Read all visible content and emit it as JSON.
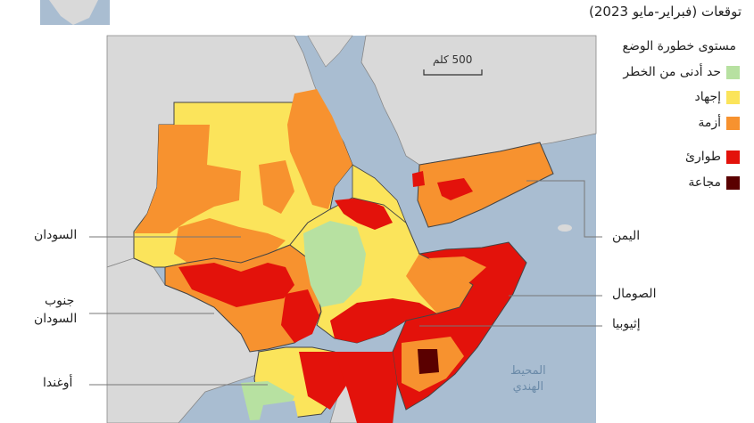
{
  "subtitle": "توقعات (فبراير-مايو 2023)",
  "legend": {
    "title": "مستوى خطورة الوضع",
    "items": [
      {
        "label": "حد أدنى من الخطر",
        "color": "#b7e1a1"
      },
      {
        "label": "إجهاد",
        "color": "#fbe45b"
      },
      {
        "label": "أزمة",
        "color": "#f7922f"
      },
      {
        "label": "طوارئ",
        "color": "#e3120b"
      },
      {
        "label": "مجاعة",
        "color": "#5a0000"
      }
    ]
  },
  "scale": {
    "label": "500 كلم"
  },
  "countries": {
    "sudan": "السودان",
    "south_sudan_1": "جنوب",
    "south_sudan_2": "السودان",
    "uganda": "أوغندا",
    "yemen": "اليمن",
    "somalia": "الصومال",
    "ethiopia": "إثيوبيا"
  },
  "ocean": {
    "line1": "المحيط",
    "line2": "الهندي"
  },
  "colors": {
    "water": "#a9bdd1",
    "land_gray": "#d9d9d9",
    "border": "#555555",
    "minimal": "#b7e1a1",
    "stressed": "#fbe45b",
    "crisis": "#f7922f",
    "emergency": "#e3120b",
    "famine": "#5a0000"
  }
}
